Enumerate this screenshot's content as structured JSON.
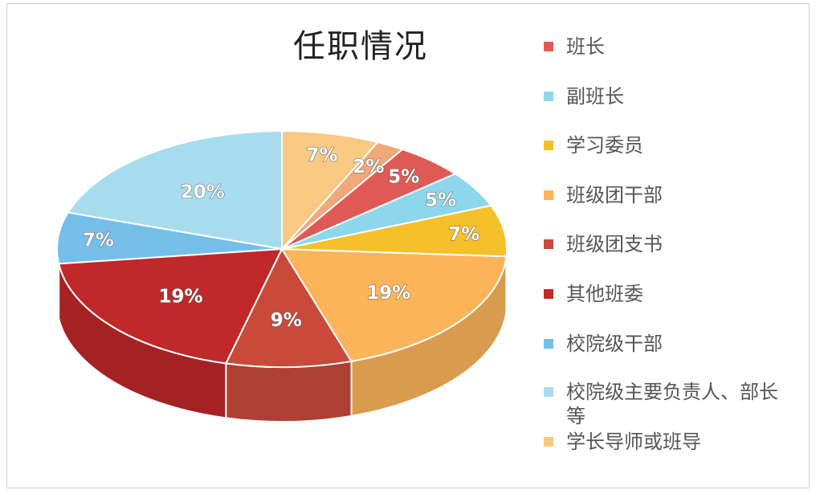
{
  "chart_data": {
    "type": "pie",
    "title": "任职情况",
    "is_3d": true,
    "legend_position": "right",
    "categories": [
      "班长",
      "副班长",
      "学习委员",
      "班级团干部",
      "班级团支书",
      "其他班委",
      "校院级干部",
      "校院级主要负责人、部长等",
      "学长导师或班导"
    ],
    "values": [
      5,
      5,
      7,
      19,
      9,
      19,
      7,
      20,
      7
    ],
    "labels": [
      "5%",
      "5%",
      "7%",
      "19%",
      "9%",
      "19%",
      "7%",
      "20%",
      "7%"
    ],
    "extra_slice": {
      "value": 2,
      "label": "2%",
      "color": "#f0a87a"
    },
    "colors": [
      "#e05a55",
      "#8cd7ec",
      "#f6c02b",
      "#fcb45a",
      "#c94a3a",
      "#c0282a",
      "#74bfea",
      "#a7dcef",
      "#f7c982"
    ]
  }
}
